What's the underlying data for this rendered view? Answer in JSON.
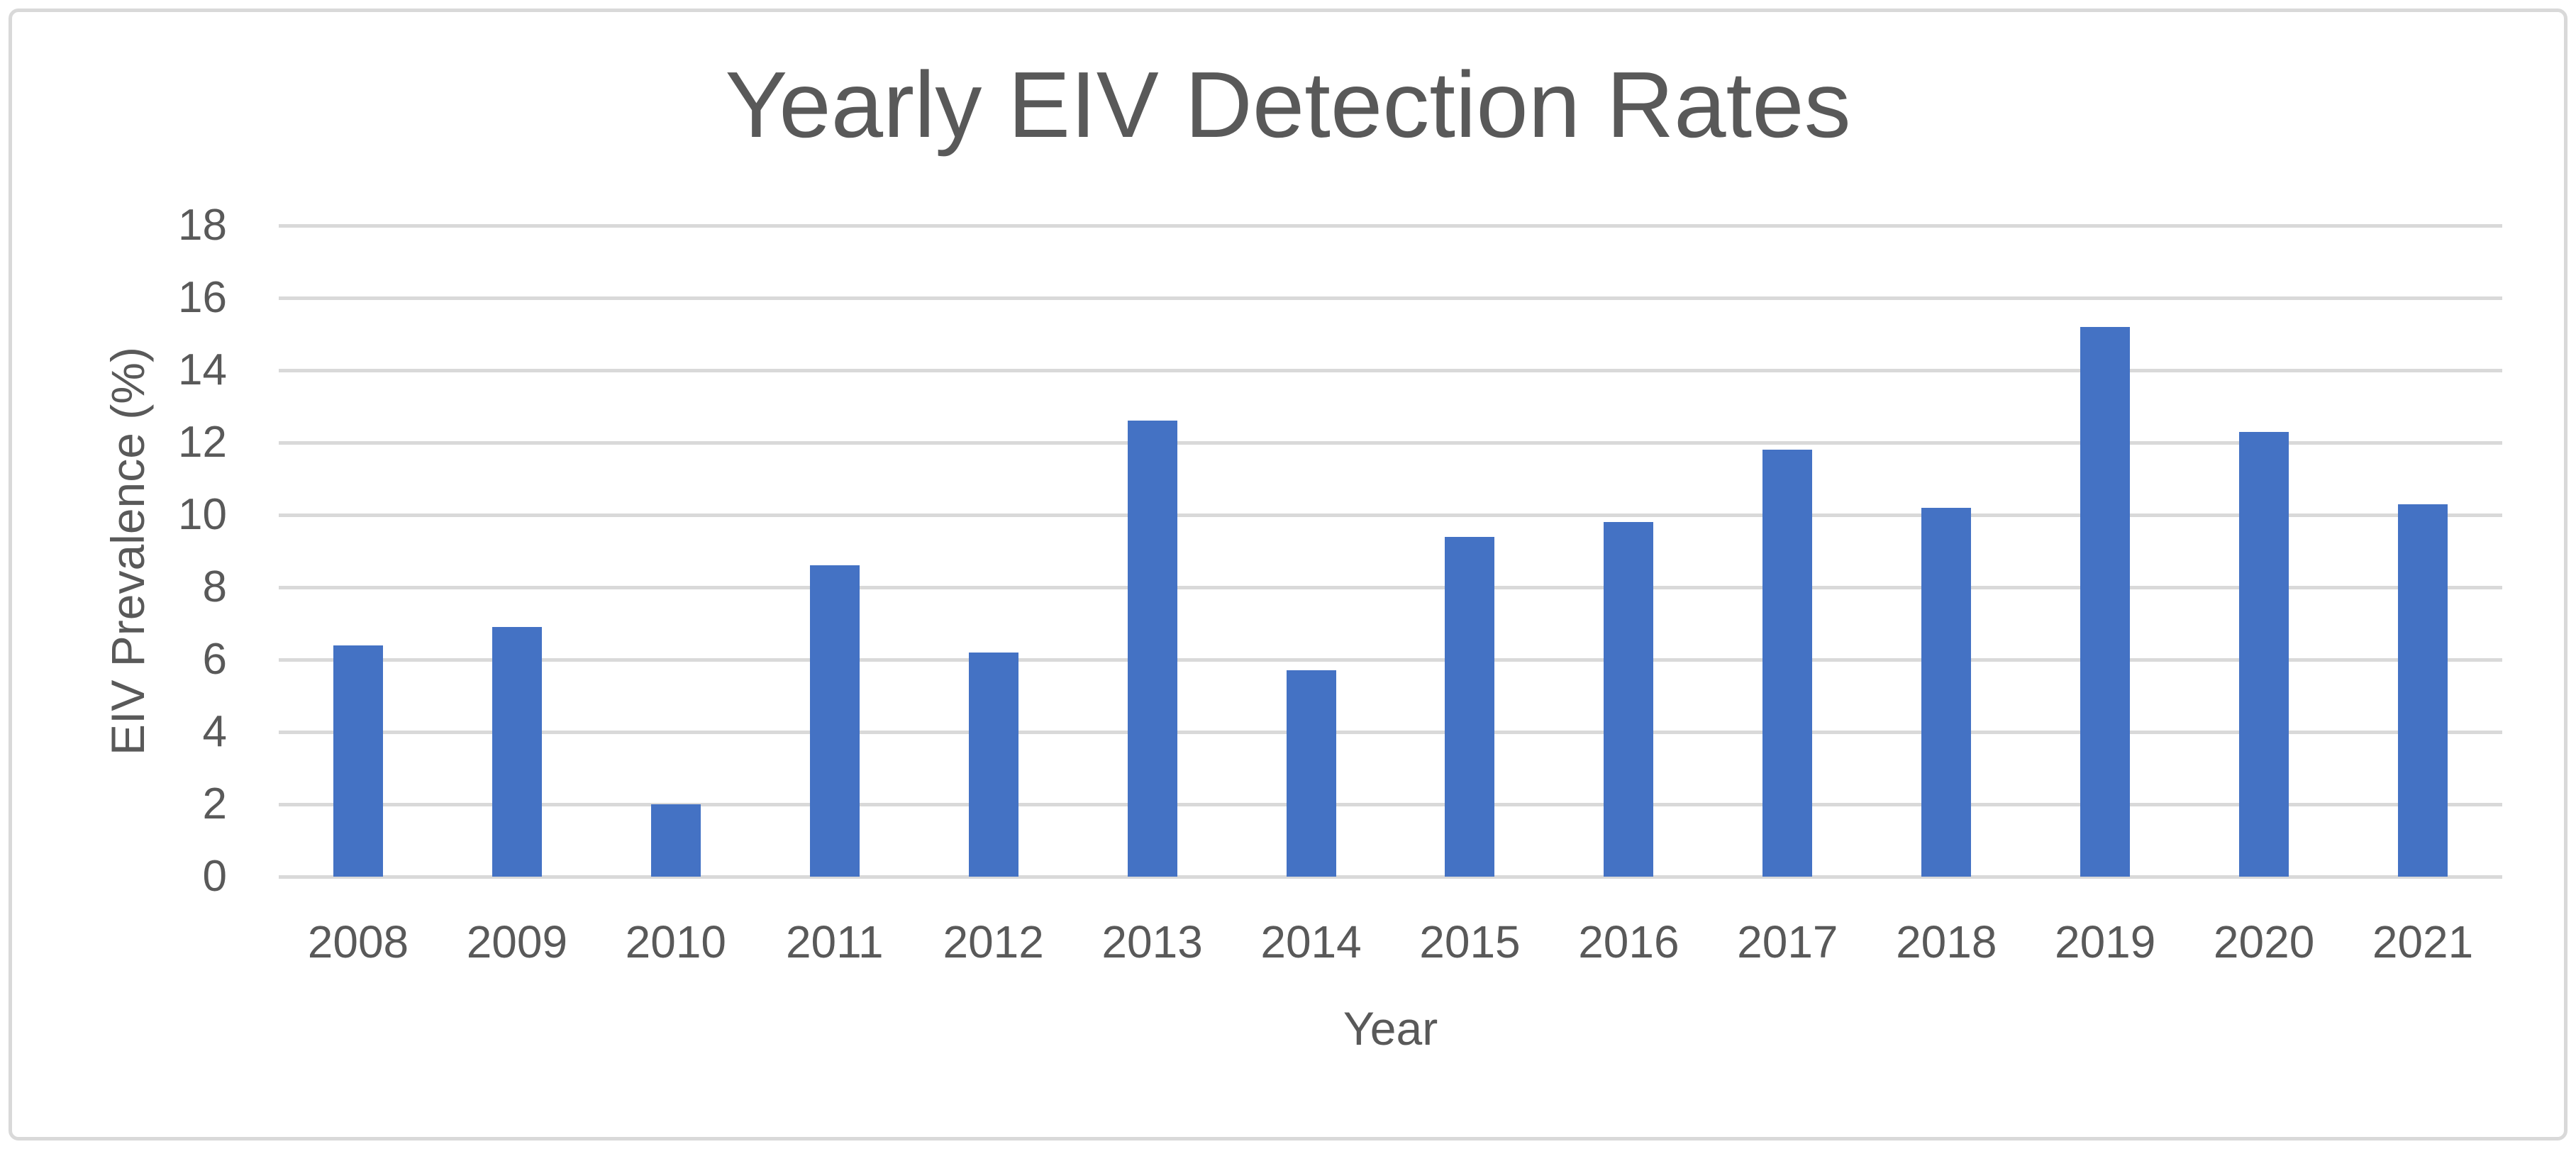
{
  "colors": {
    "bar": "#4472C4",
    "gridline": "#D9D9D9",
    "text": "#595959",
    "border": "#D9D9D9",
    "background": "#FFFFFF"
  },
  "chart_data": {
    "type": "bar",
    "title": "Yearly EIV Detection Rates",
    "xlabel": "Year",
    "ylabel": "EIV Prevalence (%)",
    "categories": [
      "2008",
      "2009",
      "2010",
      "2011",
      "2012",
      "2013",
      "2014",
      "2015",
      "2016",
      "2017",
      "2018",
      "2019",
      "2020",
      "2021"
    ],
    "values": [
      6.4,
      6.9,
      2.0,
      8.6,
      6.2,
      12.6,
      5.7,
      9.4,
      9.8,
      11.8,
      10.2,
      15.2,
      12.3,
      10.3
    ],
    "ylim": [
      0,
      18
    ],
    "yticks": [
      0,
      2,
      4,
      6,
      8,
      10,
      12,
      14,
      16,
      18
    ],
    "grid": true,
    "legend_position": "none",
    "bar_color": "#4472C4"
  }
}
